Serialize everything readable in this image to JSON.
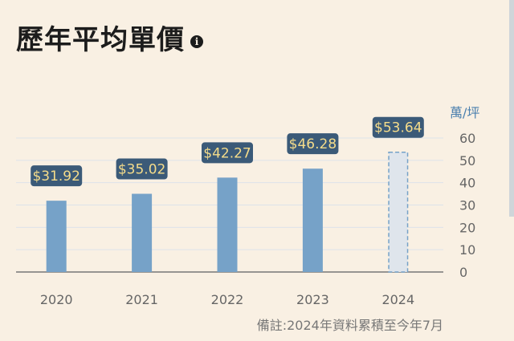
{
  "title": "歷年平均單價",
  "note": "備註:2024年資料累積至今年7月",
  "chart_data": {
    "type": "bar",
    "title": "歷年平均單價",
    "ylabel": "萬/坪",
    "xlabel": "",
    "ylim": [
      0,
      60
    ],
    "yticks": [
      0,
      10,
      20,
      30,
      40,
      50,
      60
    ],
    "categories": [
      "2020",
      "2021",
      "2022",
      "2023",
      "2024"
    ],
    "values": [
      31.92,
      35.02,
      42.27,
      46.28,
      53.64
    ],
    "data_labels": [
      "$31.92",
      "$35.02",
      "$42.27",
      "$46.28",
      "$53.64"
    ],
    "estimated": [
      false,
      false,
      false,
      false,
      true
    ],
    "grid": true,
    "colors": {
      "bar": "#76a2c8",
      "bar_estimated_fill": "#dfe5ec",
      "bar_estimated_stroke": "#76a2c8",
      "label_bg": "#3b5a78",
      "label_text": "#f5dc8a",
      "axis_text": "#666666",
      "unit_text": "#4a7fae",
      "grid": "#dde3ea"
    }
  }
}
